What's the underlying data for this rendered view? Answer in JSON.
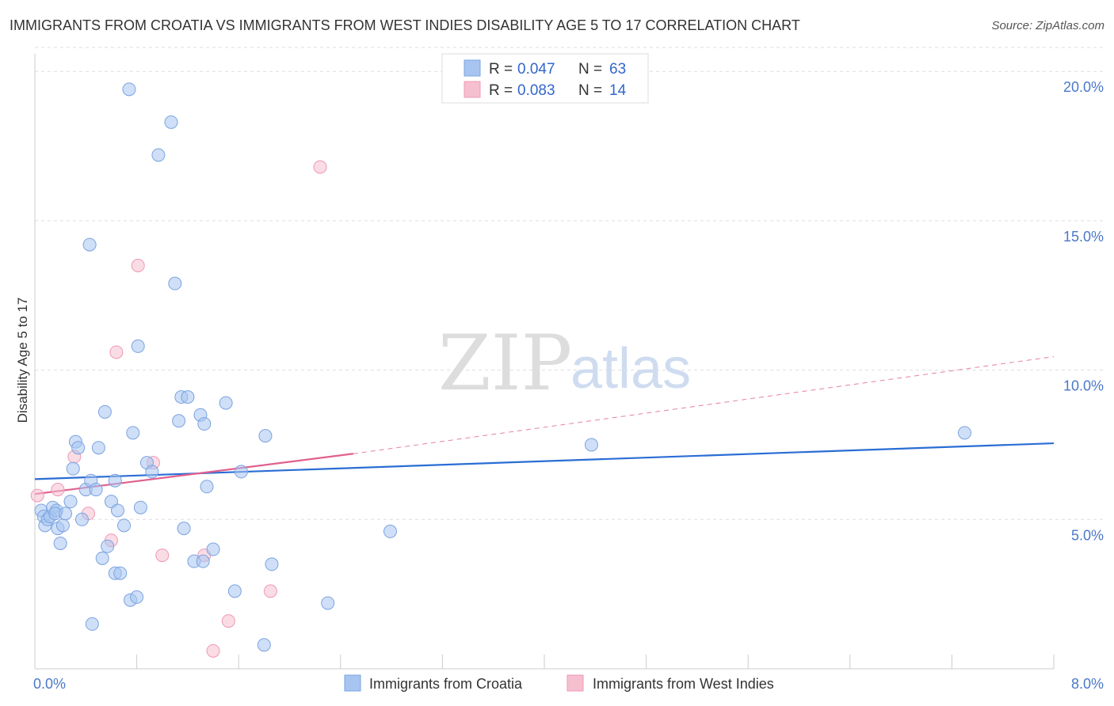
{
  "title": "IMMIGRANTS FROM CROATIA VS IMMIGRANTS FROM WEST INDIES DISABILITY AGE 5 TO 17 CORRELATION CHART",
  "source": "Source: ZipAtlas.com",
  "watermark": {
    "zip": "ZIP",
    "atlas": "atlas"
  },
  "colors": {
    "croatia_fill": "#a8c4f0",
    "croatia_stroke": "#7aa3e0",
    "croatia_line": "#2a6dd4",
    "westindies_fill": "#f6bfd0",
    "westindies_stroke": "#ee99b4",
    "westindies_line": "#e0608e",
    "grid": "#dddddd",
    "tick_text": "#4a78c8"
  },
  "legend": {
    "rows": [
      {
        "r_label": "R =",
        "r_value": "0.047",
        "n_label": "N =",
        "n_value": "63"
      },
      {
        "r_label": "R =",
        "r_value": "0.083",
        "n_label": "N =",
        "n_value": "14"
      }
    ]
  },
  "chart_data": {
    "type": "scatter",
    "title": "IMMIGRANTS FROM CROATIA VS IMMIGRANTS FROM WEST INDIES DISABILITY AGE 5 TO 17 CORRELATION CHART",
    "xlabel": "",
    "ylabel": "Disability Age 5 to 17",
    "xlim": [
      0,
      8
    ],
    "ylim": [
      0,
      20.8
    ],
    "x_tick_labels": [
      "0.0%",
      "8.0%"
    ],
    "y_ticks": [
      5,
      10,
      15,
      20
    ],
    "y_tick_labels": [
      "5.0%",
      "10.0%",
      "15.0%",
      "20.0%"
    ],
    "grid": true,
    "legend_position": "top-center",
    "series": [
      {
        "name": "Immigrants from Croatia",
        "r": 0.047,
        "n": 63,
        "trend": {
          "x0": 0,
          "y0": 6.35,
          "x1": 8,
          "y1": 7.55
        },
        "points": [
          [
            0.05,
            5.3
          ],
          [
            0.07,
            5.1
          ],
          [
            0.08,
            4.8
          ],
          [
            0.1,
            5.0
          ],
          [
            0.12,
            5.1
          ],
          [
            0.14,
            5.4
          ],
          [
            0.17,
            5.3
          ],
          [
            0.18,
            4.7
          ],
          [
            0.2,
            4.2
          ],
          [
            0.22,
            4.8
          ],
          [
            0.28,
            5.6
          ],
          [
            0.3,
            6.7
          ],
          [
            0.32,
            7.6
          ],
          [
            0.34,
            7.4
          ],
          [
            0.37,
            5.0
          ],
          [
            0.4,
            6.0
          ],
          [
            0.44,
            6.3
          ],
          [
            0.45,
            1.5
          ],
          [
            0.48,
            6.0
          ],
          [
            0.5,
            7.4
          ],
          [
            0.53,
            3.7
          ],
          [
            0.55,
            8.6
          ],
          [
            0.57,
            4.1
          ],
          [
            0.6,
            5.6
          ],
          [
            0.63,
            6.3
          ],
          [
            0.63,
            3.2
          ],
          [
            0.65,
            5.3
          ],
          [
            0.67,
            3.2
          ],
          [
            0.7,
            4.8
          ],
          [
            0.75,
            2.3
          ],
          [
            0.77,
            7.9
          ],
          [
            0.8,
            2.4
          ],
          [
            0.81,
            10.8
          ],
          [
            0.83,
            5.4
          ],
          [
            0.88,
            6.9
          ],
          [
            0.92,
            6.6
          ],
          [
            0.97,
            17.2
          ],
          [
            1.07,
            18.3
          ],
          [
            1.1,
            12.9
          ],
          [
            1.13,
            8.3
          ],
          [
            1.15,
            9.1
          ],
          [
            1.17,
            4.7
          ],
          [
            1.2,
            9.1
          ],
          [
            1.25,
            3.6
          ],
          [
            1.3,
            8.5
          ],
          [
            1.32,
            3.6
          ],
          [
            1.33,
            8.2
          ],
          [
            1.35,
            6.1
          ],
          [
            1.4,
            4.0
          ],
          [
            1.5,
            8.9
          ],
          [
            1.57,
            2.6
          ],
          [
            1.62,
            6.6
          ],
          [
            1.8,
            0.8
          ],
          [
            1.81,
            7.8
          ],
          [
            1.86,
            3.5
          ],
          [
            2.3,
            2.2
          ],
          [
            2.79,
            4.6
          ],
          [
            4.37,
            7.5
          ],
          [
            7.3,
            7.9
          ],
          [
            0.43,
            14.2
          ],
          [
            0.74,
            19.4
          ],
          [
            0.16,
            5.2
          ],
          [
            0.24,
            5.2
          ]
        ]
      },
      {
        "name": "Immigrants from West Indies",
        "r": 0.083,
        "n": 14,
        "trend_solid": {
          "x0": 0,
          "y0": 5.85,
          "x1": 2.5,
          "y1": 7.2
        },
        "trend_dashed": {
          "x0": 2.5,
          "y0": 7.2,
          "x1": 8,
          "y1": 10.45
        },
        "points": [
          [
            0.02,
            5.8
          ],
          [
            0.18,
            6.0
          ],
          [
            0.31,
            7.1
          ],
          [
            0.42,
            5.2
          ],
          [
            0.6,
            4.3
          ],
          [
            0.64,
            10.6
          ],
          [
            0.81,
            13.5
          ],
          [
            0.93,
            6.9
          ],
          [
            1.0,
            3.8
          ],
          [
            1.33,
            3.8
          ],
          [
            1.4,
            0.6
          ],
          [
            1.52,
            1.6
          ],
          [
            1.85,
            2.6
          ],
          [
            2.24,
            16.8
          ]
        ]
      }
    ]
  },
  "bottom_legend": {
    "items": [
      {
        "label": "Immigrants from Croatia"
      },
      {
        "label": "Immigrants from West Indies"
      }
    ]
  }
}
